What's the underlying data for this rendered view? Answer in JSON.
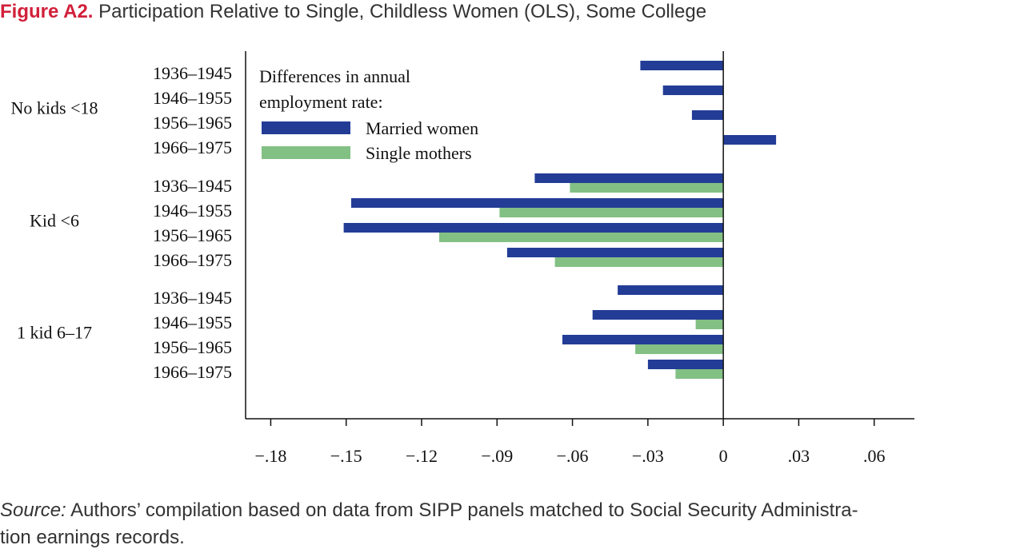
{
  "figure": {
    "label": "Figure A2.",
    "title": "Participation Relative to Single, Childless Women (OLS), Some College"
  },
  "source": {
    "label": "Source:",
    "line1": "Authors’ compilation based on data from SIPP panels matched to Social Security Administra-",
    "line2": "tion earnings records."
  },
  "chart_data": {
    "type": "bar",
    "orientation": "horizontal",
    "legend_title_lines": [
      "Differences in annual",
      "employment rate:"
    ],
    "legend_placement": "top-left",
    "grid": false,
    "xlim": [
      -0.19,
      0.076
    ],
    "x_ticks": [
      {
        "value": -0.18,
        "label": "−.18"
      },
      {
        "value": -0.15,
        "label": "−.15"
      },
      {
        "value": -0.12,
        "label": "−.12"
      },
      {
        "value": -0.09,
        "label": "−.09"
      },
      {
        "value": -0.06,
        "label": "−.06"
      },
      {
        "value": -0.03,
        "label": "−.03"
      },
      {
        "value": 0,
        "label": "0"
      },
      {
        "value": 0.03,
        "label": ".03"
      },
      {
        "value": 0.06,
        "label": ".06"
      }
    ],
    "series": [
      {
        "name": "Married women",
        "color": "#233d96"
      },
      {
        "name": "Single mothers",
        "color": "#82c084"
      }
    ],
    "groups": [
      {
        "label": "No kids <18",
        "categories": [
          "1936–1945",
          "1946–1955",
          "1956–1965",
          "1966–1975"
        ],
        "values": [
          [
            -0.033,
            -0.024,
            -0.0125,
            0.021
          ],
          [
            null,
            null,
            null,
            null
          ]
        ]
      },
      {
        "label": "Kid <6",
        "categories": [
          "1936–1945",
          "1946–1955",
          "1956–1965",
          "1966–1975"
        ],
        "values": [
          [
            -0.075,
            -0.148,
            -0.151,
            -0.086
          ],
          [
            -0.061,
            -0.089,
            -0.113,
            -0.067
          ]
        ]
      },
      {
        "label": "1 kid 6–17",
        "categories": [
          "1936–1945",
          "1946–1955",
          "1956–1965",
          "1966–1975"
        ],
        "values": [
          [
            -0.042,
            -0.052,
            -0.064,
            -0.03
          ],
          [
            null,
            -0.011,
            -0.035,
            -0.019
          ]
        ]
      }
    ]
  }
}
